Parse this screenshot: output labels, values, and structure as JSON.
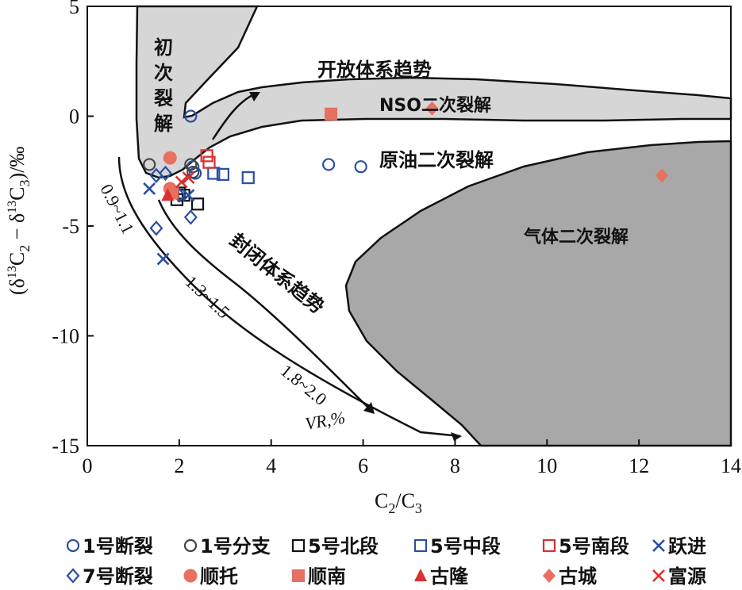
{
  "chart_data": {
    "type": "scatter",
    "xlim": [
      0,
      14
    ],
    "ylim": [
      -15,
      5
    ],
    "x_ticks": [
      "0",
      "2",
      "4",
      "6",
      "8",
      "10",
      "12",
      "14"
    ],
    "y_ticks": [
      "5",
      "0",
      "-5",
      "-10",
      "-15"
    ],
    "xlabel_main": "C",
    "xlabel_sub1": "2",
    "xlabel_slash": "/C",
    "xlabel_sub2": "3",
    "ylabel_open": "(δ",
    "ylabel_sup1": "13",
    "ylabel_c1": "C",
    "ylabel_sub1": "2",
    "ylabel_minus": " − δ",
    "ylabel_sup2": "13",
    "ylabel_c2": "C",
    "ylabel_sub2": "3",
    "ylabel_close": ")/‰",
    "region_labels": {
      "primary": [
        "初",
        "次",
        "裂",
        "解"
      ],
      "open_system": "开放体系趋势",
      "nso": "NSO二次裂解",
      "oil": "原油二次裂解",
      "gas": "气体二次裂解",
      "closed_system": "封闭体系趋势"
    },
    "vr_labels": {
      "r1": "0.9~1.1",
      "r2": "1.3~1.5",
      "r3": "1.8~2.0",
      "unit": "VR,%"
    },
    "series": [
      {
        "name": "1号断裂",
        "marker": "circle-open",
        "color": "#2a4fa3",
        "points": [
          [
            2.25,
            0.0
          ],
          [
            5.25,
            -2.2
          ],
          [
            5.95,
            -2.3
          ],
          [
            2.3,
            -2.3
          ],
          [
            2.35,
            -2.6
          ]
        ]
      },
      {
        "name": "1号分支",
        "marker": "circle-open",
        "color": "#444444",
        "points": [
          [
            1.35,
            -2.2
          ],
          [
            2.25,
            -2.2
          ],
          [
            2.3,
            -2.55
          ]
        ]
      },
      {
        "name": "5号北段",
        "marker": "square-open",
        "color": "#111111",
        "points": [
          [
            2.0,
            -3.5
          ],
          [
            2.1,
            -3.6
          ],
          [
            1.95,
            -3.8
          ],
          [
            2.4,
            -4.0
          ]
        ]
      },
      {
        "name": "5号中段",
        "marker": "square-open",
        "color": "#2a4fa3",
        "points": [
          [
            2.75,
            -2.6
          ],
          [
            2.95,
            -2.65
          ],
          [
            3.5,
            -2.8
          ]
        ]
      },
      {
        "name": "5号南段",
        "marker": "square-open",
        "color": "#d93030",
        "points": [
          [
            2.6,
            -1.8
          ],
          [
            2.65,
            -2.1
          ]
        ]
      },
      {
        "name": "跃进",
        "marker": "x",
        "color": "#2a4fa3",
        "points": [
          [
            1.35,
            -3.3
          ],
          [
            1.65,
            -6.5
          ],
          [
            2.2,
            -3.6
          ]
        ]
      },
      {
        "name": "7号断裂",
        "marker": "diamond-open",
        "color": "#2a4fa3",
        "points": [
          [
            1.5,
            -2.7
          ],
          [
            1.7,
            -2.6
          ],
          [
            1.5,
            -5.1
          ],
          [
            2.25,
            -4.6
          ],
          [
            2.0,
            -3.6
          ]
        ]
      },
      {
        "name": "顺托",
        "marker": "circle-filled",
        "color": "#e87060",
        "points": [
          [
            1.8,
            -1.9
          ],
          [
            1.8,
            -3.3
          ]
        ]
      },
      {
        "name": "顺南",
        "marker": "square-filled",
        "color": "#e87060",
        "points": [
          [
            5.3,
            0.1
          ],
          [
            1.85,
            -3.5
          ]
        ]
      },
      {
        "name": "古隆",
        "marker": "triangle-filled",
        "color": "#d93030",
        "points": [
          [
            1.75,
            -3.6
          ]
        ]
      },
      {
        "name": "古城",
        "marker": "diamond-filled",
        "color": "#e87060",
        "points": [
          [
            7.5,
            0.35
          ],
          [
            12.5,
            -2.7
          ]
        ]
      },
      {
        "name": "富源",
        "marker": "x",
        "color": "#d93030",
        "points": [
          [
            2.2,
            -2.8
          ],
          [
            2.05,
            -3.0
          ]
        ]
      }
    ]
  }
}
